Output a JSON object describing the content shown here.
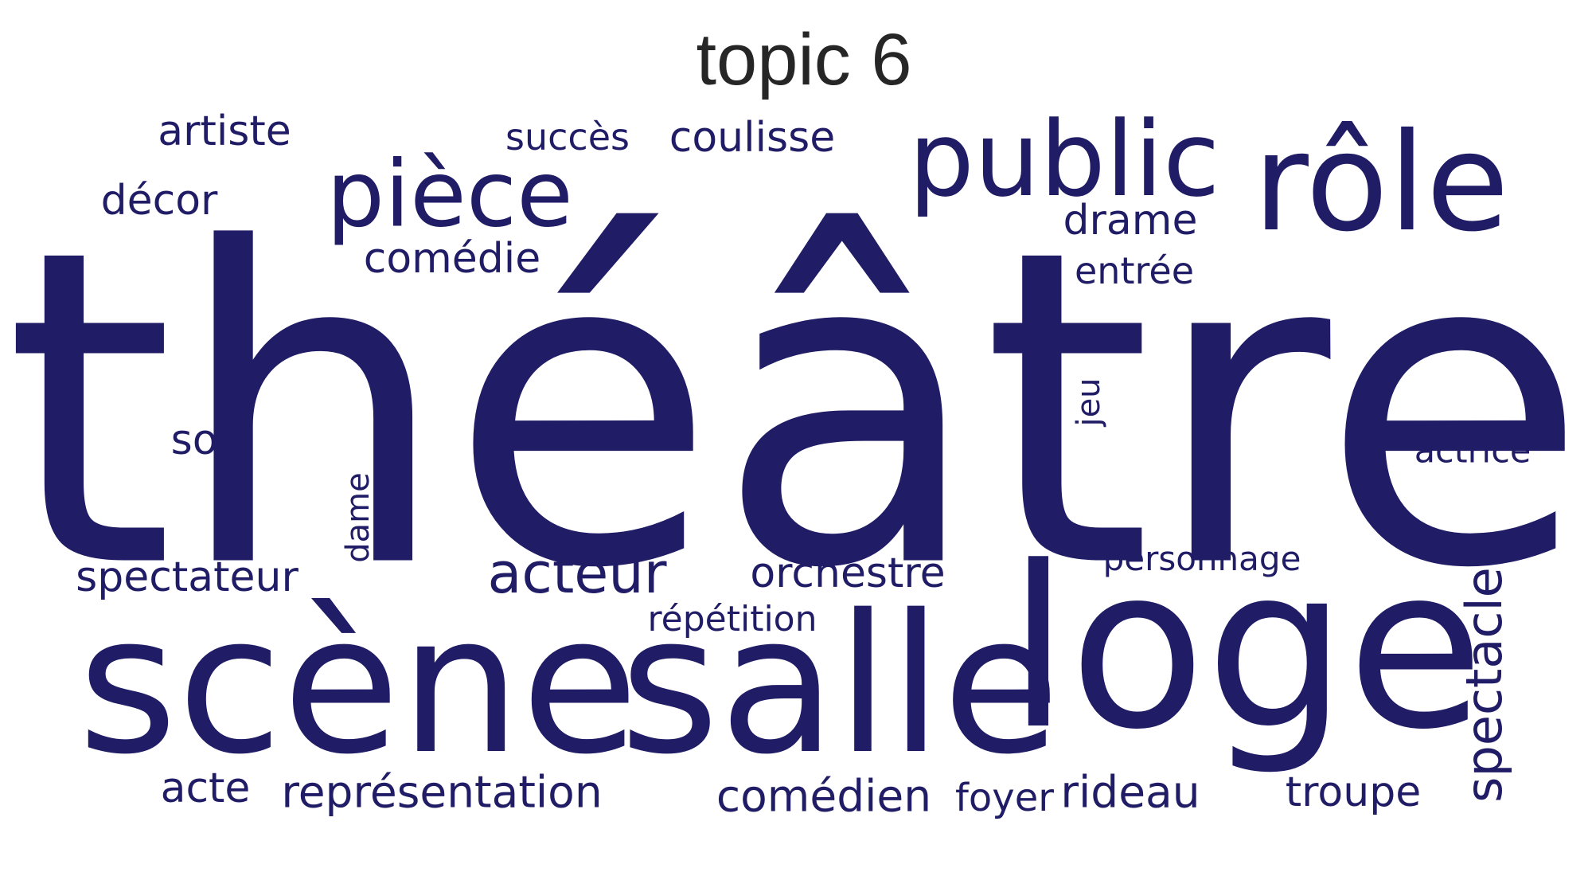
{
  "title": "topic 6",
  "color": "#201c66",
  "words": [
    "théâtre",
    "scène",
    "salle",
    "loge",
    "rôle",
    "public",
    "pièce",
    "acteur",
    "représentation",
    "spectateur",
    "comédien",
    "rideau",
    "troupe",
    "spectacle",
    "orchestre",
    "comédie",
    "drame",
    "coulisse",
    "artiste",
    "succès",
    "décor",
    "soir",
    "entrée",
    "actrice",
    "personnage",
    "répétition",
    "acte",
    "foyer",
    "jeu",
    "dame"
  ]
}
